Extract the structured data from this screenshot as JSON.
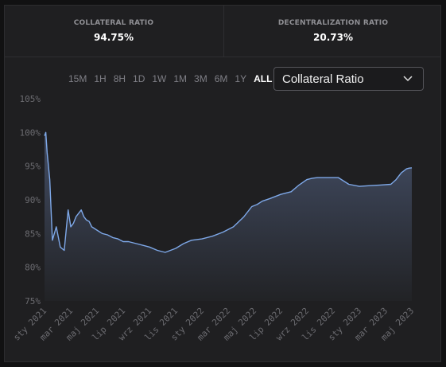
{
  "stats": [
    {
      "label": "COLLATERAL RATIO",
      "value": "94.75%"
    },
    {
      "label": "DECENTRALIZATION RATIO",
      "value": "20.73%"
    }
  ],
  "ranges": [
    "15M",
    "1H",
    "8H",
    "1D",
    "1W",
    "1M",
    "3M",
    "6M",
    "1Y",
    "ALL"
  ],
  "active_range": "ALL",
  "select": {
    "label": "Collateral Ratio"
  },
  "colors": {
    "line": "#7ea8e8",
    "area_top": "#46516a",
    "area_bottom": "#222326",
    "grid_text": "#6b6b70"
  },
  "chart_data": {
    "type": "area",
    "title": "",
    "xlabel": "",
    "ylabel": "",
    "ylim": [
      75,
      105
    ],
    "y_ticks": [
      "105%",
      "100%",
      "95%",
      "90%",
      "85%",
      "80%",
      "75%"
    ],
    "x_ticks": [
      "sty 2021",
      "mar 2021",
      "maj 2021",
      "lip 2021",
      "wrz 2021",
      "lis 2021",
      "sty 2022",
      "mar 2022",
      "maj 2022",
      "lip 2022",
      "wrz 2022",
      "lis 2022",
      "sty 2023",
      "mar 2023",
      "maj 2023"
    ],
    "series": [
      {
        "x": [
          0,
          0.05,
          0.1,
          0.2,
          0.3,
          0.45,
          0.6,
          0.75,
          0.9,
          1.0,
          1.1,
          1.2,
          1.3,
          1.4,
          1.5,
          1.6,
          1.7,
          1.8,
          2.0,
          2.2,
          2.4,
          2.6,
          2.8,
          3.0,
          3.2,
          3.5,
          3.8,
          4.0,
          4.3,
          4.6,
          5.0,
          5.3,
          5.6,
          6.0,
          6.4,
          6.8,
          7.2,
          7.6,
          7.9,
          8.1,
          8.3,
          8.6,
          9.0,
          9.4,
          9.7,
          10.0,
          10.2,
          10.4,
          10.8,
          11.2,
          11.6,
          12.0,
          12.4,
          12.8,
          13.2,
          13.4,
          13.6,
          13.8,
          13.9,
          14.0
        ],
        "values": [
          99.5,
          100,
          97,
          93,
          84,
          86,
          83,
          82.5,
          88.5,
          86,
          86.5,
          87.5,
          88,
          88.5,
          87.5,
          87,
          86.8,
          86,
          85.5,
          85,
          84.8,
          84.4,
          84.2,
          83.8,
          83.8,
          83.5,
          83.2,
          83,
          82.5,
          82.2,
          82.8,
          83.5,
          84,
          84.2,
          84.6,
          85.2,
          86,
          87.5,
          89,
          89.3,
          89.8,
          90.2,
          90.8,
          91.2,
          92.2,
          93,
          93.2,
          93.3,
          93.3,
          93.3,
          92.3,
          92,
          92.1,
          92.2,
          92.3,
          93,
          94,
          94.6,
          94.7,
          94.75
        ]
      }
    ]
  }
}
